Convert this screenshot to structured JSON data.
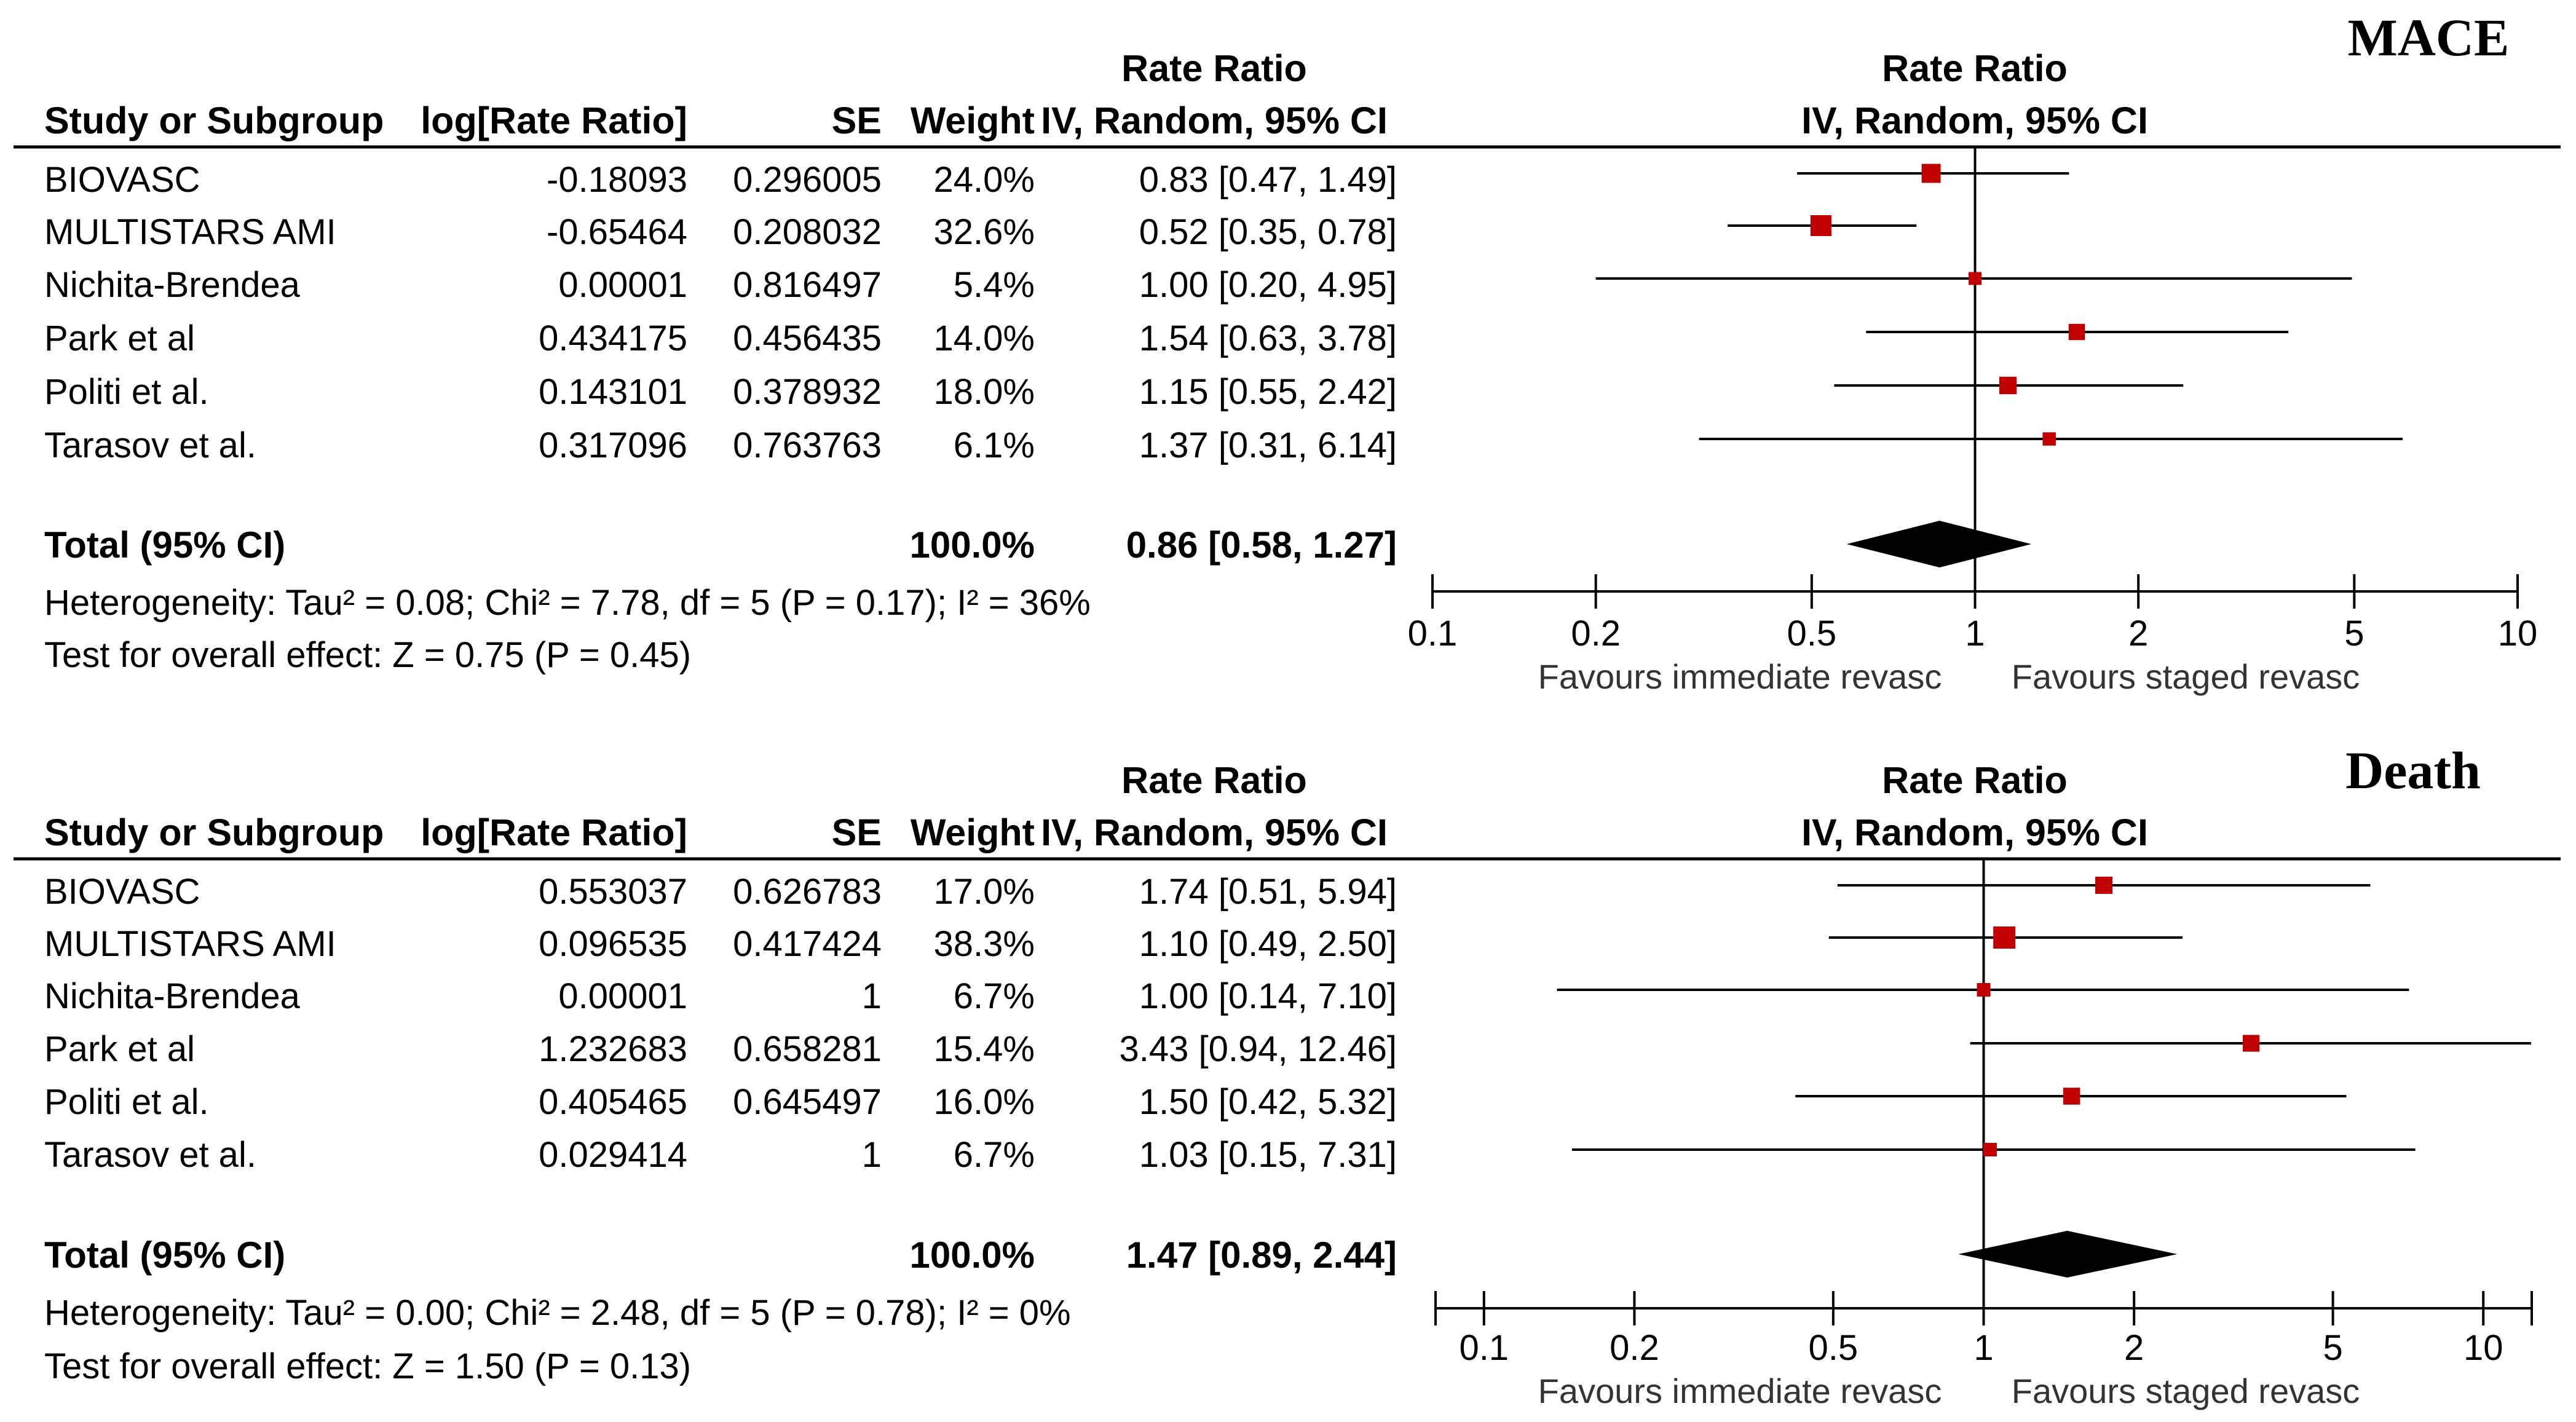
{
  "colors": {
    "marker": "#c00000",
    "title": "#dd0000",
    "ink": "#000000",
    "diamond": "#000000"
  },
  "chart_data": [
    {
      "type": "forest",
      "title": "MACE",
      "columns": {
        "study": "Study or Subgroup",
        "log": "log[Rate Ratio]",
        "se": "SE",
        "weight": "Weight",
        "rr_top": "Rate Ratio",
        "rr_sub": "IV, Random, 95% CI"
      },
      "plot_header_top": "Rate Ratio",
      "plot_header_sub": "IV, Random, 95% CI",
      "studies": [
        {
          "name": "BIOVASC",
          "log": "-0.18093",
          "se": "0.296005",
          "weight": "24.0%",
          "ci": "0.83 [0.47, 1.49]",
          "rr": 0.83,
          "lo": 0.47,
          "hi": 1.49,
          "w": 24.0
        },
        {
          "name": "MULTISTARS AMI",
          "log": "-0.65464",
          "se": "0.208032",
          "weight": "32.6%",
          "ci": "0.52 [0.35, 0.78]",
          "rr": 0.52,
          "lo": 0.35,
          "hi": 0.78,
          "w": 32.6
        },
        {
          "name": "Nichita-Brendea",
          "log": "0.00001",
          "se": "0.816497",
          "weight": "5.4%",
          "ci": "1.00 [0.20, 4.95]",
          "rr": 1.0,
          "lo": 0.2,
          "hi": 4.95,
          "w": 5.4
        },
        {
          "name": "Park et al",
          "log": "0.434175",
          "se": "0.456435",
          "weight": "14.0%",
          "ci": "1.54 [0.63, 3.78]",
          "rr": 1.54,
          "lo": 0.63,
          "hi": 3.78,
          "w": 14.0
        },
        {
          "name": "Politi et al.",
          "log": "0.143101",
          "se": "0.378932",
          "weight": "18.0%",
          "ci": "1.15 [0.55, 2.42]",
          "rr": 1.15,
          "lo": 0.55,
          "hi": 2.42,
          "w": 18.0
        },
        {
          "name": "Tarasov  et al.",
          "log": "0.317096",
          "se": "0.763763",
          "weight": "6.1%",
          "ci": "1.37 [0.31, 6.14]",
          "rr": 1.37,
          "lo": 0.31,
          "hi": 6.14,
          "w": 6.1
        }
      ],
      "total": {
        "label": "Total (95% CI)",
        "weight": "100.0%",
        "ci": "0.86 [0.58, 1.27]",
        "rr": 0.86,
        "lo": 0.58,
        "hi": 1.27
      },
      "heterogeneity": "Heterogeneity: Tau² = 0.08; Chi² = 7.78, df = 5 (P = 0.17); I² = 36%",
      "overall": "Test for overall effect: Z = 0.75 (P = 0.45)",
      "xscale": "log",
      "xlim": [
        0.1,
        10
      ],
      "ticks": [
        {
          "v": 0.1,
          "label": "0.1"
        },
        {
          "v": 0.2,
          "label": "0.2"
        },
        {
          "v": 0.5,
          "label": "0.5"
        },
        {
          "v": 1,
          "label": "1"
        },
        {
          "v": 2,
          "label": "2"
        },
        {
          "v": 5,
          "label": "5"
        },
        {
          "v": 10,
          "label": "10"
        }
      ],
      "favours_left": "Favours immediate revasc",
      "favours_right": "Favours staged revasc"
    },
    {
      "type": "forest",
      "title": "Death",
      "columns": {
        "study": "Study or Subgroup",
        "log": "log[Rate Ratio]",
        "se": "SE",
        "weight": "Weight",
        "rr_top": "Rate Ratio",
        "rr_sub": "IV, Random, 95% CI"
      },
      "plot_header_top": "Rate Ratio",
      "plot_header_sub": "IV, Random, 95% CI",
      "studies": [
        {
          "name": "BIOVASC",
          "log": "0.553037",
          "se": "0.626783",
          "weight": "17.0%",
          "ci": "1.74 [0.51, 5.94]",
          "rr": 1.74,
          "lo": 0.51,
          "hi": 5.94,
          "w": 17.0
        },
        {
          "name": "MULTISTARS AMI",
          "log": "0.096535",
          "se": "0.417424",
          "weight": "38.3%",
          "ci": "1.10 [0.49, 2.50]",
          "rr": 1.1,
          "lo": 0.49,
          "hi": 2.5,
          "w": 38.3
        },
        {
          "name": "Nichita-Brendea",
          "log": "0.00001",
          "se": "1",
          "weight": "6.7%",
          "ci": "1.00 [0.14, 7.10]",
          "rr": 1.0,
          "lo": 0.14,
          "hi": 7.1,
          "w": 6.7
        },
        {
          "name": "Park et al",
          "log": "1.232683",
          "se": "0.658281",
          "weight": "15.4%",
          "ci": "3.43 [0.94, 12.46]",
          "rr": 3.43,
          "lo": 0.94,
          "hi": 12.46,
          "w": 15.4
        },
        {
          "name": "Politi et al.",
          "log": "0.405465",
          "se": "0.645497",
          "weight": "16.0%",
          "ci": "1.50 [0.42, 5.32]",
          "rr": 1.5,
          "lo": 0.42,
          "hi": 5.32,
          "w": 16.0
        },
        {
          "name": "Tarasov  et al.",
          "log": "0.029414",
          "se": "1",
          "weight": "6.7%",
          "ci": "1.03 [0.15, 7.31]",
          "rr": 1.03,
          "lo": 0.15,
          "hi": 7.31,
          "w": 6.7
        }
      ],
      "total": {
        "label": "Total (95% CI)",
        "weight": "100.0%",
        "ci": "1.47 [0.89, 2.44]",
        "rr": 1.47,
        "lo": 0.89,
        "hi": 2.44
      },
      "heterogeneity": "Heterogeneity: Tau² = 0.00; Chi² = 2.48, df = 5 (P = 0.78); I² = 0%",
      "overall": "Test for overall effect: Z = 1.50 (P = 0.13)",
      "xscale": "log",
      "xlim": [
        0.08,
        12.5
      ],
      "ticks": [
        {
          "v": 0.1,
          "label": "0.1"
        },
        {
          "v": 0.2,
          "label": "0.2"
        },
        {
          "v": 0.5,
          "label": "0.5"
        },
        {
          "v": 1,
          "label": "1"
        },
        {
          "v": 2,
          "label": "2"
        },
        {
          "v": 5,
          "label": "5"
        },
        {
          "v": 10,
          "label": "10"
        }
      ],
      "favours_left": "Favours immediate revasc",
      "favours_right": "Favours staged revasc"
    }
  ]
}
